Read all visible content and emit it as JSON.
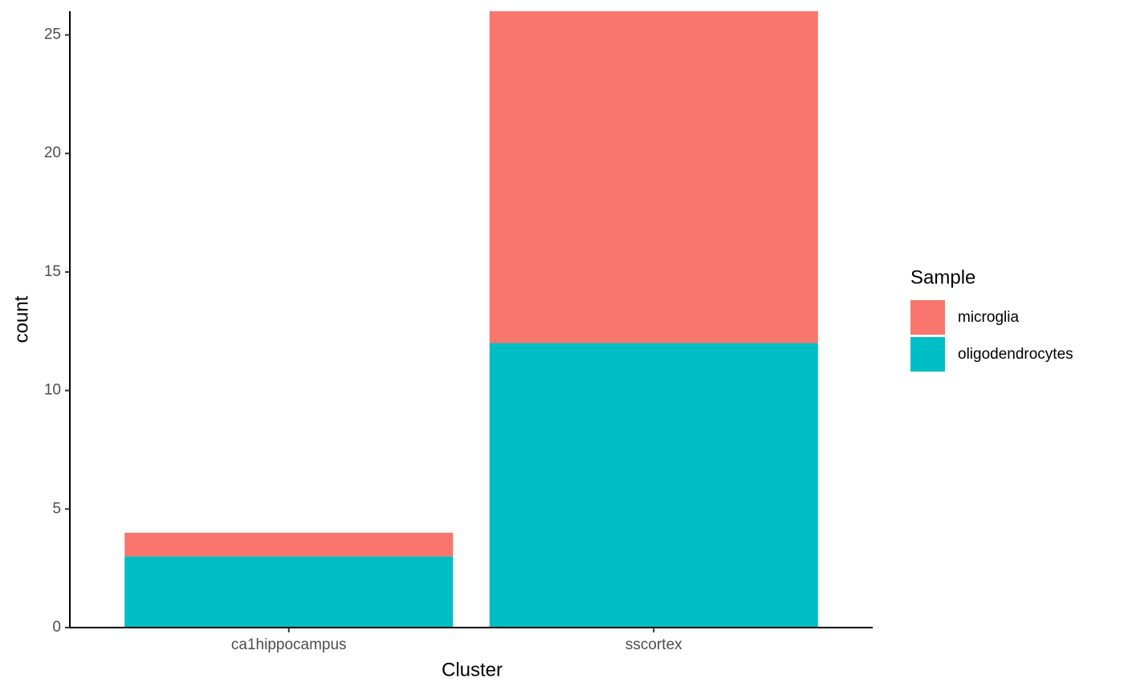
{
  "chart_data": {
    "type": "stacked-bar",
    "x_label": "Cluster",
    "y_label": "count",
    "legend_title": "Sample",
    "categories": [
      "ca1hippocampus",
      "sscortex"
    ],
    "series": [
      {
        "name": "microglia",
        "color": "#F8766D",
        "values": [
          1,
          14
        ]
      },
      {
        "name": "oligodendrocytes",
        "color": "#00BFC4",
        "values": [
          3,
          12
        ]
      }
    ],
    "ylim": [
      0,
      26
    ],
    "yticks": [
      0,
      5,
      10,
      15,
      20,
      25
    ],
    "legend": "right"
  }
}
